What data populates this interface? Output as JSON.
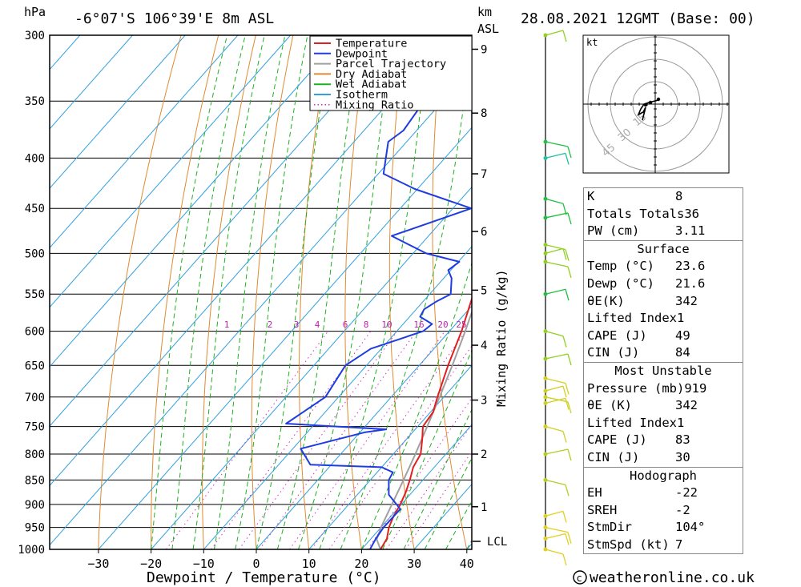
{
  "header": {
    "pressure_unit": "hPa",
    "location": "-6°07'S 106°39'E 8m ASL",
    "height_unit": "km",
    "height_unit2": "ASL",
    "datetime": "28.08.2021 12GMT (Base: 00)"
  },
  "footer": {
    "credit": "weatheronline.co.uk"
  },
  "hodograph": {
    "unit": "kt",
    "ring_labels": [
      "15",
      "30",
      "45"
    ]
  },
  "chart_data": {
    "type": "skew-t",
    "xlabel": "Dewpoint / Temperature (°C)",
    "y2label": "Mixing Ratio (g/kg)",
    "pressure_ticks": [
      300,
      350,
      400,
      450,
      500,
      550,
      600,
      650,
      700,
      750,
      800,
      850,
      900,
      950,
      1000
    ],
    "temperature_ticks": [
      -30,
      -20,
      -10,
      0,
      10,
      20,
      30,
      40
    ],
    "km_ticks": [
      1,
      2,
      3,
      4,
      5,
      6,
      7,
      8,
      9
    ],
    "lcl_label": "LCL",
    "mixing_ratio_labels": [
      "1",
      "2",
      "3",
      "4",
      "6",
      "8",
      "10",
      "16",
      "20",
      "25"
    ],
    "legend": [
      {
        "name": "Temperature",
        "color": "#e02020",
        "style": "solid"
      },
      {
        "name": "Dewpoint",
        "color": "#1e3ce0",
        "style": "solid"
      },
      {
        "name": "Parcel Trajectory",
        "color": "#a0a0a0",
        "style": "solid"
      },
      {
        "name": "Dry Adiabat",
        "color": "#e08a30",
        "style": "solid"
      },
      {
        "name": "Wet Adiabat",
        "color": "#20b020",
        "style": "solid"
      },
      {
        "name": "Isotherm",
        "color": "#30a0e0",
        "style": "solid"
      },
      {
        "name": "Mixing Ratio",
        "color": "#d030c0",
        "style": "dotted"
      }
    ],
    "temperature_profile": [
      {
        "p": 1000,
        "t": 23.6
      },
      {
        "p": 975,
        "t": 23.0
      },
      {
        "p": 950,
        "t": 21.5
      },
      {
        "p": 925,
        "t": 20.5
      },
      {
        "p": 900,
        "t": 19.8
      },
      {
        "p": 875,
        "t": 18.8
      },
      {
        "p": 850,
        "t": 17.5
      },
      {
        "p": 825,
        "t": 16.0
      },
      {
        "p": 800,
        "t": 15.2
      },
      {
        "p": 775,
        "t": 13.2
      },
      {
        "p": 750,
        "t": 11.0
      },
      {
        "p": 725,
        "t": 10.5
      },
      {
        "p": 700,
        "t": 8.8
      },
      {
        "p": 650,
        "t": 5.5
      },
      {
        "p": 600,
        "t": 2.3
      },
      {
        "p": 550,
        "t": -1.7
      },
      {
        "p": 500,
        "t": -5.5
      },
      {
        "p": 475,
        "t": -8.5
      },
      {
        "p": 450,
        "t": -11.7
      },
      {
        "p": 425,
        "t": -14.5
      },
      {
        "p": 400,
        "t": -18.2
      },
      {
        "p": 370,
        "t": -22.5
      },
      {
        "p": 360,
        "t": -23.0
      }
    ],
    "dewpoint_profile": [
      {
        "p": 1000,
        "t": 21.6
      },
      {
        "p": 975,
        "t": 20.9
      },
      {
        "p": 950,
        "t": 20.5
      },
      {
        "p": 910,
        "t": 20.6
      },
      {
        "p": 880,
        "t": 16.0
      },
      {
        "p": 850,
        "t": 13.5
      },
      {
        "p": 835,
        "t": 13.0
      },
      {
        "p": 825,
        "t": 10.0
      },
      {
        "p": 820,
        "t": -4.0
      },
      {
        "p": 790,
        "t": -8.5
      },
      {
        "p": 760,
        "t": 1.0
      },
      {
        "p": 755,
        "t": 4.5
      },
      {
        "p": 745,
        "t": -15.5
      },
      {
        "p": 700,
        "t": -12.5
      },
      {
        "p": 650,
        "t": -14.0
      },
      {
        "p": 625,
        "t": -12.0
      },
      {
        "p": 600,
        "t": -5.0
      },
      {
        "p": 590,
        "t": -4.5
      },
      {
        "p": 580,
        "t": -8.0
      },
      {
        "p": 570,
        "t": -8.5
      },
      {
        "p": 560,
        "t": -7.5
      },
      {
        "p": 550,
        "t": -6.0
      },
      {
        "p": 530,
        "t": -8.5
      },
      {
        "p": 520,
        "t": -10.5
      },
      {
        "p": 510,
        "t": -9.8
      },
      {
        "p": 500,
        "t": -17.5
      },
      {
        "p": 480,
        "t": -27.0
      },
      {
        "p": 450,
        "t": -16.5
      },
      {
        "p": 430,
        "t": -30.5
      },
      {
        "p": 415,
        "t": -39.0
      },
      {
        "p": 385,
        "t": -43.5
      },
      {
        "p": 375,
        "t": -42.5
      },
      {
        "p": 350,
        "t": -43.5
      },
      {
        "p": 300,
        "t": -45.0
      }
    ],
    "parcel_profile": [
      {
        "p": 1000,
        "t": 23.6
      },
      {
        "p": 977,
        "t": 21.2
      },
      {
        "p": 950,
        "t": 20.0
      },
      {
        "p": 900,
        "t": 18.2
      },
      {
        "p": 850,
        "t": 16.3
      },
      {
        "p": 800,
        "t": 14.2
      },
      {
        "p": 750,
        "t": 11.8
      },
      {
        "p": 700,
        "t": 9.2
      },
      {
        "p": 650,
        "t": 6.3
      },
      {
        "p": 600,
        "t": 3.0
      },
      {
        "p": 550,
        "t": -0.8
      },
      {
        "p": 500,
        "t": -5.0
      },
      {
        "p": 450,
        "t": -10.3
      },
      {
        "p": 400,
        "t": -17.0
      },
      {
        "p": 350,
        "t": -25.2
      },
      {
        "p": 300,
        "t": -35.5
      }
    ],
    "winds": [
      {
        "p": 1000,
        "color": "#e0d020"
      },
      {
        "p": 975,
        "color": "#e0d020"
      },
      {
        "p": 950,
        "color": "#e0d020"
      },
      {
        "p": 925,
        "color": "#e0d020"
      },
      {
        "p": 850,
        "color": "#b0d020"
      },
      {
        "p": 800,
        "color": "#b0d020"
      },
      {
        "p": 750,
        "color": "#d0d020"
      },
      {
        "p": 710,
        "color": "#d0d020"
      },
      {
        "p": 700,
        "color": "#d0d020"
      },
      {
        "p": 690,
        "color": "#d0d020"
      },
      {
        "p": 670,
        "color": "#d0d020"
      },
      {
        "p": 640,
        "color": "#90d020"
      },
      {
        "p": 600,
        "color": "#90d020"
      },
      {
        "p": 550,
        "color": "#20c040"
      },
      {
        "p": 510,
        "color": "#90d020"
      },
      {
        "p": 500,
        "color": "#90d020"
      },
      {
        "p": 490,
        "color": "#90d020"
      },
      {
        "p": 460,
        "color": "#20c040"
      },
      {
        "p": 440,
        "color": "#20c040"
      },
      {
        "p": 400,
        "color": "#20c0a0"
      },
      {
        "p": 385,
        "color": "#20c040"
      },
      {
        "p": 300,
        "color": "#90d020"
      }
    ]
  },
  "indices": {
    "k": {
      "label": "K",
      "value": "8"
    },
    "totals_totals": {
      "label": "Totals Totals",
      "value": "36"
    },
    "pw": {
      "label": "PW (cm)",
      "value": "3.11"
    }
  },
  "surface": {
    "title": "Surface",
    "temp": {
      "label": "Temp (°C)",
      "value": "23.6"
    },
    "dewp": {
      "label": "Dewp (°C)",
      "value": "21.6"
    },
    "theta_e": {
      "label": "θE(K)",
      "value": "342"
    },
    "lifted_index": {
      "label": "Lifted Index",
      "value": "1"
    },
    "cape": {
      "label": "CAPE (J)",
      "value": "49"
    },
    "cin": {
      "label": "CIN (J)",
      "value": "84"
    }
  },
  "most_unstable": {
    "title": "Most Unstable",
    "pressure": {
      "label": "Pressure (mb)",
      "value": "919"
    },
    "theta_e": {
      "label": "θE (K)",
      "value": "342"
    },
    "lifted_index": {
      "label": "Lifted Index",
      "value": "1"
    },
    "cape": {
      "label": "CAPE (J)",
      "value": "83"
    },
    "cin": {
      "label": "CIN (J)",
      "value": "30"
    }
  },
  "hodograph_table": {
    "title": "Hodograph",
    "eh": {
      "label": "EH",
      "value": "-22"
    },
    "sreh": {
      "label": "SREH",
      "value": "-2"
    },
    "stmdir": {
      "label": "StmDir",
      "value": "104°"
    },
    "stmspd": {
      "label": "StmSpd (kt)",
      "value": "7"
    }
  }
}
